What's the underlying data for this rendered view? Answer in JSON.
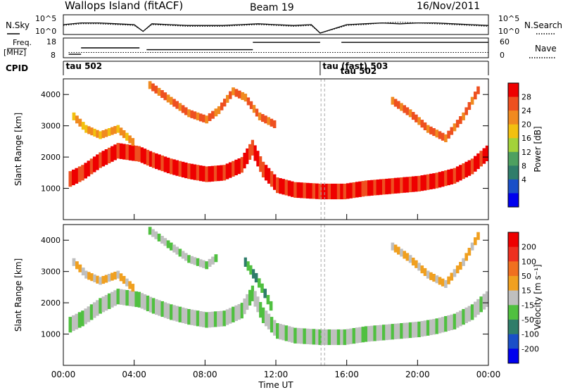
{
  "header": {
    "title": "Wallops Island (fitACF)",
    "beam": "Beam 19",
    "date": "16/Nov/2011"
  },
  "chart_data": [
    {
      "type": "line",
      "panel": "noise",
      "left_label": "N.Sky",
      "right_label": "N.Search",
      "yticks_left": [
        "10^5",
        "10^0"
      ],
      "yticks_right": [
        "10^5",
        "10^0"
      ],
      "x": [
        0,
        1,
        2,
        3,
        4,
        4.5,
        5,
        6,
        7,
        8,
        9,
        10,
        11,
        12,
        13,
        14,
        14.5,
        16,
        17,
        18,
        19,
        20,
        21,
        22,
        23,
        24
      ],
      "series": [
        {
          "values": [
            0.5,
            0.6,
            0.6,
            0.55,
            0.5,
            0.1,
            0.55,
            0.5,
            0.45,
            0.45,
            0.45,
            0.5,
            0.55,
            0.5,
            0.45,
            0.5,
            0.0,
            0.5,
            0.55,
            0.6,
            0.55,
            0.6,
            0.6,
            0.55,
            0.5,
            0.45
          ]
        },
        {
          "values": [
            0.45,
            0.55,
            0.55,
            0.5,
            0.45,
            0.1,
            0.5,
            0.45,
            0.4,
            0.4,
            0.4,
            0.45,
            0.5,
            0.45,
            0.4,
            0.45,
            0.0,
            0.45,
            0.5,
            0.6,
            0.65,
            0.6,
            0.55,
            0.5,
            0.45,
            0.4
          ]
        }
      ]
    },
    {
      "type": "line",
      "panel": "frequency",
      "left_label_1": "Freq.",
      "left_label_2": "[MHz]",
      "right_label": "Nave",
      "yticks_left": [
        "18",
        "8"
      ],
      "yticks_right": [
        "60",
        "0"
      ],
      "freq_segments": [
        {
          "x0": 0.3,
          "x1": 1.0,
          "y": 9.5
        },
        {
          "x0": 1.0,
          "x1": 4.3,
          "y": 13
        },
        {
          "x0": 4.7,
          "x1": 10.7,
          "y": 12
        },
        {
          "x0": 10.7,
          "x1": 14.5,
          "y": 16
        },
        {
          "x0": 15.7,
          "x1": 24,
          "y": 16
        }
      ],
      "nave": 15
    },
    {
      "type": "table",
      "panel": "cpid",
      "label": "CPID",
      "modes": [
        {
          "x": 0.1,
          "label": "tau 502"
        },
        {
          "x": 14.6,
          "label": "tau (fast) 503"
        },
        {
          "x": 15.6,
          "label": "tau 502"
        }
      ],
      "boundary_x": 14.5
    },
    {
      "type": "heatmap",
      "panel": "power",
      "ylabel": "Slant Range [km]",
      "yticks": [
        "1000",
        "2000",
        "3000",
        "4000"
      ],
      "ylim": [
        0,
        4500
      ],
      "colorbar_label": "Power [dB]",
      "colorbar_ticks": [
        "28",
        "24",
        "20",
        "16",
        "12",
        "8",
        "4"
      ],
      "colors": [
        "#0000ee",
        "#1a4fc8",
        "#2f7d6a",
        "#4ea060",
        "#a3d23a",
        "#f2c010",
        "#f08a20",
        "#ee5020",
        "#ee0000"
      ],
      "bands": [
        {
          "x": [
            0.3,
            1,
            2,
            3,
            4.2,
            5,
            6,
            7,
            8,
            9,
            10,
            10.6,
            11.2,
            12,
            13,
            14.4,
            15.8,
            17,
            18,
            19,
            20,
            21,
            22,
            23,
            24
          ],
          "y": [
            1300,
            1500,
            1900,
            2200,
            2100,
            1900,
            1700,
            1550,
            1450,
            1500,
            1750,
            2300,
            1600,
            1100,
            950,
            900,
            900,
            1000,
            1050,
            1100,
            1150,
            1250,
            1400,
            1700,
            2200
          ],
          "width": 500,
          "level": 8
        },
        {
          "x": [
            0.5,
            1.2,
            2,
            3,
            4
          ],
          "y": [
            3300,
            2900,
            2700,
            2900,
            2400
          ],
          "width": 250,
          "level": 6
        },
        {
          "x": [
            4.8,
            6,
            7,
            8,
            8.7,
            9.5,
            10.2,
            11,
            12
          ],
          "y": [
            4300,
            3800,
            3400,
            3200,
            3500,
            4100,
            3900,
            3300,
            3000
          ],
          "width": 250,
          "level": 7
        },
        {
          "x": [
            18.5,
            19.5,
            20.5,
            21.5,
            22.5,
            23.5
          ],
          "y": [
            3800,
            3400,
            2900,
            2600,
            3300,
            4300
          ],
          "width": 250,
          "level": 7
        }
      ]
    },
    {
      "type": "heatmap",
      "panel": "velocity",
      "ylabel": "Slant Range [km]",
      "xlabel": "Time UT",
      "yticks": [
        "1000",
        "2000",
        "3000",
        "4000"
      ],
      "xticks": [
        "00:00",
        "04:00",
        "08:00",
        "12:00",
        "16:00",
        "20:00",
        "00:00"
      ],
      "xlim": [
        0,
        24
      ],
      "ylim": [
        0,
        4500
      ],
      "colorbar_label": "Velocity [m s⁻¹]",
      "colorbar_ticks": [
        "200",
        "100",
        "50",
        "15",
        "-15",
        "-50",
        "-100",
        "-200"
      ],
      "colors": [
        "#0000ee",
        "#1a4fc8",
        "#2f7d6a",
        "#50c040",
        "#bfbfbf",
        "#f0a020",
        "#f07020",
        "#ee3020",
        "#ee0000"
      ],
      "bands": [
        {
          "x": [
            0.3,
            1,
            2,
            3,
            4.2,
            5,
            6,
            7,
            8,
            9,
            10,
            10.6,
            11.2,
            12,
            13,
            14.4,
            15.8,
            17,
            18,
            19,
            20,
            21,
            22,
            23,
            24
          ],
          "y": [
            1300,
            1500,
            1900,
            2200,
            2100,
            1900,
            1700,
            1550,
            1450,
            1500,
            1750,
            2300,
            1600,
            1100,
            950,
            900,
            900,
            1000,
            1050,
            1100,
            1150,
            1250,
            1400,
            1700,
            2200
          ],
          "width": 500,
          "level": 4
        },
        {
          "x": [
            0.5,
            1.2,
            2,
            3,
            4
          ],
          "y": [
            3300,
            2900,
            2700,
            2900,
            2400
          ],
          "width": 250,
          "level": 5
        },
        {
          "x": [
            10.2,
            10.8,
            11.3,
            11.8
          ],
          "y": [
            3300,
            2800,
            2300,
            1700
          ],
          "width": 300,
          "level": 3
        },
        {
          "x": [
            4.8,
            6,
            7,
            8,
            8.7
          ],
          "y": [
            4300,
            3800,
            3400,
            3200,
            3500
          ],
          "width": 250,
          "level": 4
        },
        {
          "x": [
            18.5,
            19.5,
            20.5,
            21.5,
            22.5,
            23.5
          ],
          "y": [
            3800,
            3400,
            2900,
            2600,
            3300,
            4300
          ],
          "width": 250,
          "level": 5
        }
      ]
    }
  ]
}
